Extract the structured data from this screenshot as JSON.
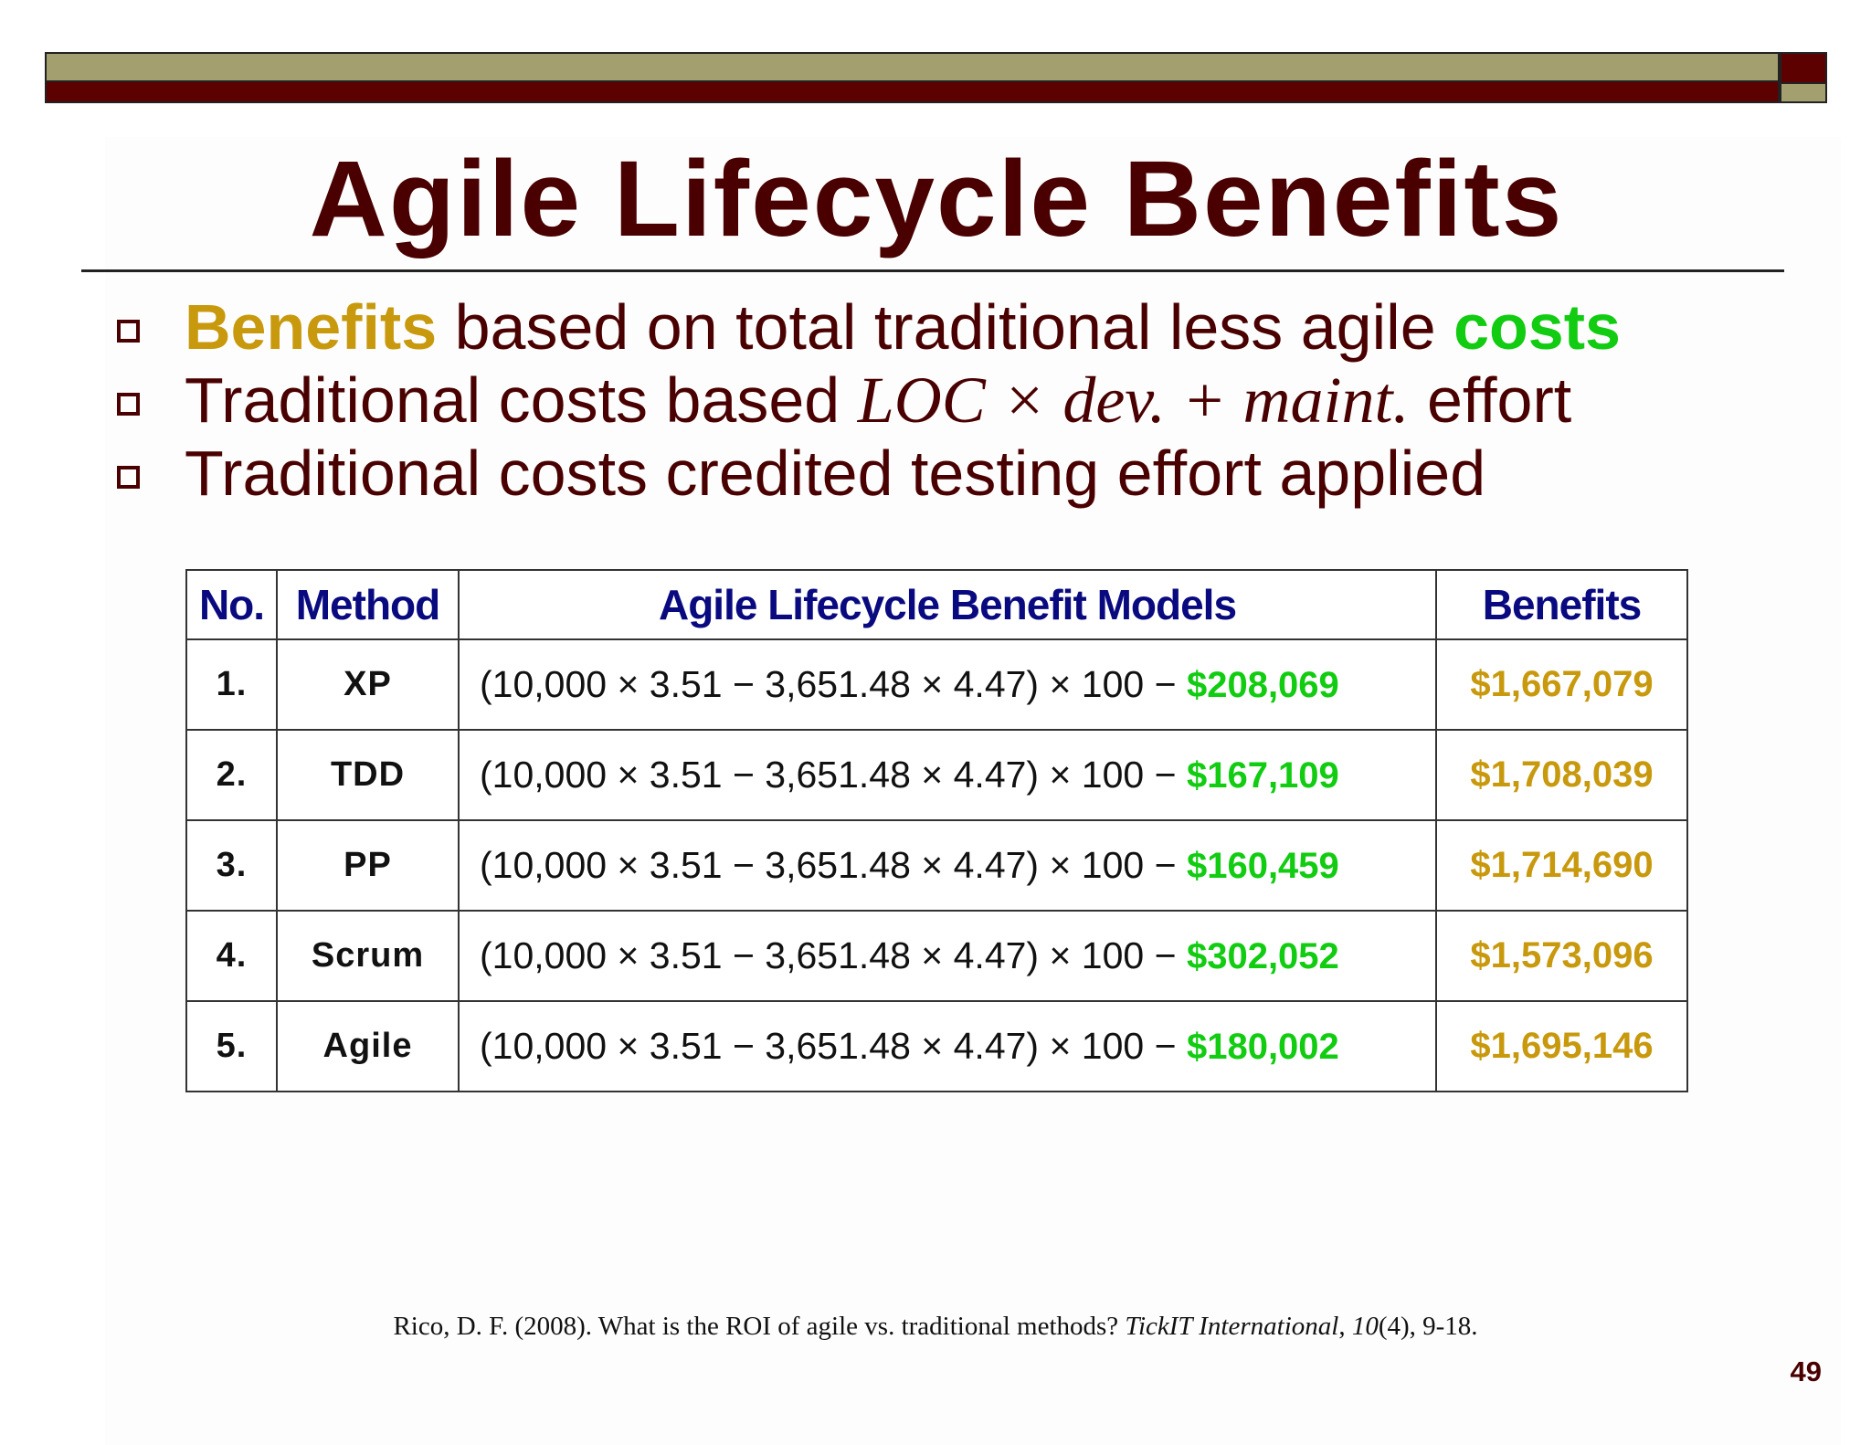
{
  "title": "Agile Lifecycle Benefits",
  "bullets": [
    {
      "segments": [
        {
          "text": "Benefits",
          "style": "gold-bold"
        },
        {
          "text": " based on total traditional less agile ",
          "style": "plain"
        },
        {
          "text": "costs",
          "style": "green-bold"
        }
      ]
    },
    {
      "segments": [
        {
          "text": "Traditional costs based ",
          "style": "plain"
        },
        {
          "text": "LOC × dev. + maint.",
          "style": "formula"
        },
        {
          "text": " effort",
          "style": "plain"
        }
      ]
    },
    {
      "segments": [
        {
          "text": "Traditional costs credited testing effort applied",
          "style": "plain"
        }
      ]
    }
  ],
  "table": {
    "headers": {
      "no": "No.",
      "method": "Method",
      "model": "Agile Lifecycle Benefit Models",
      "benefits": "Benefits"
    },
    "rows": [
      {
        "no": "1.",
        "method": "XP",
        "model": "(10,000 × 3.51 − 3,651.48 × 4.47) × 100 −",
        "cost": "$208,069",
        "benefit": "$1,667,079"
      },
      {
        "no": "2.",
        "method": "TDD",
        "model": "(10,000 × 3.51 − 3,651.48 × 4.47) × 100 −",
        "cost": "$167,109",
        "benefit": "$1,708,039"
      },
      {
        "no": "3.",
        "method": "PP",
        "model": "(10,000 × 3.51 − 3,651.48 × 4.47) × 100 −",
        "cost": "$160,459",
        "benefit": "$1,714,690"
      },
      {
        "no": "4.",
        "method": "Scrum",
        "model": "(10,000 × 3.51 − 3,651.48 × 4.47) × 100 −",
        "cost": "$302,052",
        "benefit": "$1,573,096"
      },
      {
        "no": "5.",
        "method": "Agile",
        "model": "(10,000 × 3.51 − 3,651.48 × 4.47) × 100 −",
        "cost": "$180,002",
        "benefit": "$1,695,146"
      }
    ]
  },
  "citation": {
    "before": "Rico, D. F. (2008). What is the ROI of agile vs. traditional methods? ",
    "journal": "TickIT International",
    "sep": ", ",
    "volume": "10",
    "after": "(4), 9-18."
  },
  "page_number": "49",
  "colors": {
    "title": "#4a0000",
    "header_text": "#0a0a80",
    "gold": "#c8990d",
    "green": "#11cc11",
    "olive_bar": "#a39f6f",
    "maroon_bar": "#5c0000"
  }
}
